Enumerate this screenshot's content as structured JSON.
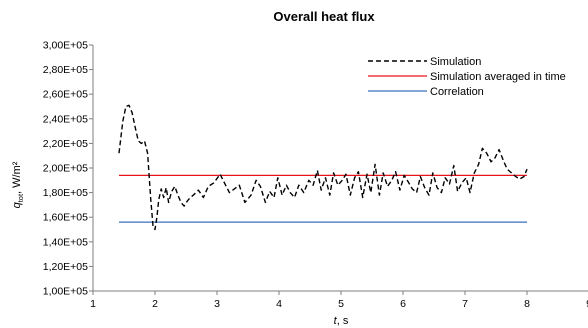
{
  "chart_data": {
    "type": "line",
    "title": "Overall heat flux",
    "xlabel": "t, s",
    "ylabel": "q_tot, W/m²",
    "xlim": [
      1,
      9
    ],
    "ylim": [
      100000,
      300000
    ],
    "x_ticks": [
      1,
      2,
      3,
      4,
      5,
      6,
      7,
      8,
      9
    ],
    "x_tick_labels": [
      "1",
      "2",
      "3",
      "4",
      "5",
      "6",
      "7",
      "8",
      "9"
    ],
    "y_ticks": [
      100000,
      120000,
      140000,
      160000,
      180000,
      200000,
      220000,
      240000,
      260000,
      280000,
      300000
    ],
    "y_tick_labels": [
      "1,00E+05",
      "1,20E+05",
      "1,40E+05",
      "1,60E+05",
      "1,80E+05",
      "2,00E+05",
      "2,20E+05",
      "2,40E+05",
      "2,60E+05",
      "2,80E+05",
      "3,00E+05"
    ],
    "grid": false,
    "legend_position": "top-right",
    "series": [
      {
        "name": "Simulation",
        "color": "#000000",
        "style": "dashed",
        "x": [
          1.42,
          1.48,
          1.53,
          1.58,
          1.63,
          1.68,
          1.73,
          1.78,
          1.83,
          1.88,
          1.93,
          1.97,
          2.0,
          2.03,
          2.06,
          2.1,
          2.14,
          2.18,
          2.22,
          2.27,
          2.32,
          2.37,
          2.42,
          2.47,
          2.52,
          2.57,
          2.62,
          2.7,
          2.78,
          2.86,
          2.95,
          3.05,
          3.12,
          3.2,
          3.28,
          3.36,
          3.45,
          3.55,
          3.63,
          3.7,
          3.78,
          3.85,
          3.92,
          3.98,
          4.05,
          4.12,
          4.18,
          4.25,
          4.32,
          4.4,
          4.48,
          4.55,
          4.62,
          4.68,
          4.75,
          4.82,
          4.88,
          4.95,
          5.02,
          5.08,
          5.15,
          5.22,
          5.28,
          5.35,
          5.42,
          5.48,
          5.55,
          5.62,
          5.68,
          5.75,
          5.82,
          5.88,
          5.95,
          6.02,
          6.08,
          6.15,
          6.22,
          6.28,
          6.35,
          6.42,
          6.48,
          6.55,
          6.62,
          6.68,
          6.75,
          6.82,
          6.88,
          6.95,
          7.02,
          7.08,
          7.15,
          7.22,
          7.28,
          7.35,
          7.42,
          7.48,
          7.55,
          7.62,
          7.68,
          7.75,
          7.82,
          7.88,
          7.95,
          8.0
        ],
        "y": [
          212000,
          238000,
          250000,
          251000,
          245000,
          233000,
          222000,
          220000,
          222000,
          212000,
          175000,
          152000,
          150000,
          160000,
          174000,
          183000,
          176000,
          184000,
          172000,
          181000,
          185000,
          178000,
          172000,
          169000,
          173000,
          176000,
          178000,
          182000,
          176000,
          185000,
          188000,
          195000,
          188000,
          180000,
          183000,
          186000,
          172000,
          178000,
          190000,
          185000,
          172000,
          181000,
          176000,
          192000,
          178000,
          186000,
          180000,
          176000,
          186000,
          180000,
          190000,
          186000,
          198000,
          182000,
          192000,
          178000,
          196000,
          186000,
          190000,
          195000,
          178000,
          192000,
          197000,
          176000,
          195000,
          180000,
          203000,
          178000,
          196000,
          185000,
          190000,
          197000,
          182000,
          194000,
          189000,
          183000,
          180000,
          193000,
          184000,
          178000,
          196000,
          184000,
          180000,
          192000,
          187000,
          202000,
          181000,
          188000,
          192000,
          180000,
          196000,
          203000,
          216000,
          212000,
          205000,
          208000,
          215000,
          206000,
          199000,
          196000,
          193000,
          191000,
          193000,
          199000
        ]
      },
      {
        "name": "Simulation averaged in time",
        "color": "#e8141c",
        "style": "solid",
        "x": [
          1.42,
          8.0
        ],
        "y": [
          194000,
          194000
        ]
      },
      {
        "name": "Correlation",
        "color": "#3a6fc4",
        "style": "solid",
        "x": [
          1.42,
          8.0
        ],
        "y": [
          156000,
          156000
        ]
      }
    ]
  }
}
